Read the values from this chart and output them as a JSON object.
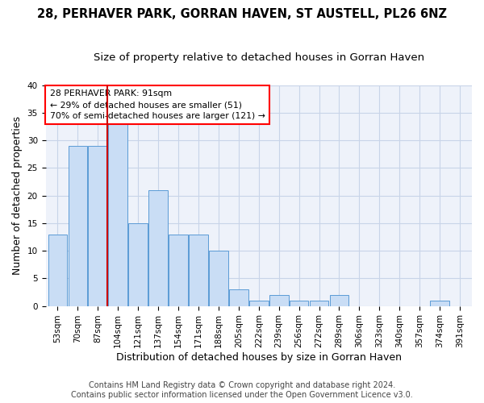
{
  "title": "28, PERHAVER PARK, GORRAN HAVEN, ST AUSTELL, PL26 6NZ",
  "subtitle": "Size of property relative to detached houses in Gorran Haven",
  "xlabel": "Distribution of detached houses by size in Gorran Haven",
  "ylabel": "Number of detached properties",
  "bar_labels": [
    "53sqm",
    "70sqm",
    "87sqm",
    "104sqm",
    "121sqm",
    "137sqm",
    "154sqm",
    "171sqm",
    "188sqm",
    "205sqm",
    "222sqm",
    "239sqm",
    "256sqm",
    "272sqm",
    "289sqm",
    "306sqm",
    "323sqm",
    "340sqm",
    "357sqm",
    "374sqm",
    "391sqm"
  ],
  "bar_values": [
    13,
    29,
    29,
    33,
    15,
    21,
    13,
    13,
    10,
    3,
    1,
    2,
    1,
    1,
    2,
    0,
    0,
    0,
    0,
    1,
    0
  ],
  "bar_color": "#c9ddf5",
  "bar_edgecolor": "#5b9bd5",
  "vline_color": "#cc0000",
  "annotation_line1": "28 PERHAVER PARK: 91sqm",
  "annotation_line2": "← 29% of detached houses are smaller (51)",
  "annotation_line3": "70% of semi-detached houses are larger (121) →",
  "annotation_box_color": "white",
  "annotation_box_edgecolor": "red",
  "ylim": [
    0,
    40
  ],
  "yticks": [
    0,
    5,
    10,
    15,
    20,
    25,
    30,
    35,
    40
  ],
  "footer_line1": "Contains HM Land Registry data © Crown copyright and database right 2024.",
  "footer_line2": "Contains public sector information licensed under the Open Government Licence v3.0.",
  "bg_color": "#eef2fa",
  "grid_color": "#c8d4e8",
  "title_fontsize": 10.5,
  "subtitle_fontsize": 9.5,
  "axis_label_fontsize": 9,
  "tick_fontsize": 7.5,
  "footer_fontsize": 7,
  "vline_x_index": 2.47
}
